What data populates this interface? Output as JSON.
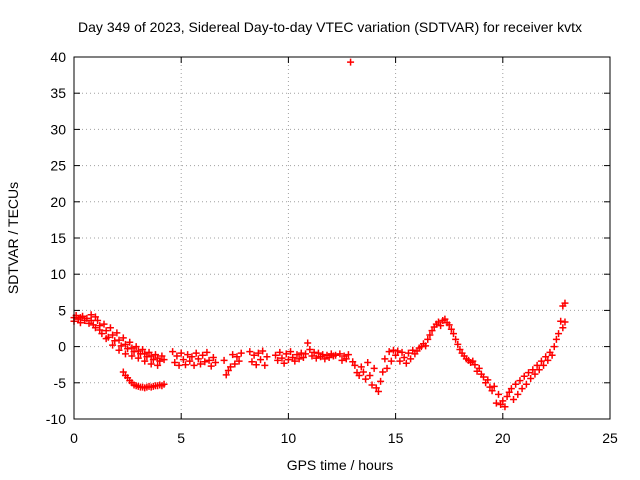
{
  "chart_data": {
    "type": "scatter",
    "title": "Day 349 of 2023, Sidereal Day-to-day VTEC variation (SDTVAR) for receiver kvtx",
    "xlabel": "GPS time / hours",
    "ylabel": "SDTVAR / TECUs",
    "xlim": [
      0,
      25
    ],
    "ylim": [
      -10,
      40
    ],
    "xticks": [
      "0",
      "5",
      "10",
      "15",
      "20",
      "25"
    ],
    "yticks": [
      "-10",
      "-5",
      "0",
      "5",
      "10",
      "15",
      "20",
      "25",
      "30",
      "35",
      "40"
    ],
    "grid": true,
    "marker": "plus",
    "series": [
      {
        "name": "kvtx",
        "color": "#ff0000",
        "points": [
          [
            0.0,
            4.0
          ],
          [
            0.0,
            3.5
          ],
          [
            0.1,
            4.3
          ],
          [
            0.2,
            3.8
          ],
          [
            0.3,
            4.0
          ],
          [
            0.3,
            3.3
          ],
          [
            0.4,
            4.2
          ],
          [
            0.5,
            3.6
          ],
          [
            0.6,
            3.9
          ],
          [
            0.7,
            3.2
          ],
          [
            0.8,
            4.4
          ],
          [
            0.8,
            3.6
          ],
          [
            0.9,
            3.0
          ],
          [
            1.0,
            4.1
          ],
          [
            1.0,
            2.6
          ],
          [
            1.1,
            3.6
          ],
          [
            1.2,
            2.9
          ],
          [
            1.3,
            1.8
          ],
          [
            1.4,
            3.1
          ],
          [
            1.5,
            2.2
          ],
          [
            1.6,
            1.3
          ],
          [
            1.7,
            2.6
          ],
          [
            1.8,
            1.6
          ],
          [
            1.9,
            0.8
          ],
          [
            2.0,
            1.9
          ],
          [
            2.1,
            0.9
          ],
          [
            2.2,
            0.1
          ],
          [
            2.3,
            1.2
          ],
          [
            2.4,
            0.3
          ],
          [
            2.5,
            -0.3
          ],
          [
            2.6,
            0.6
          ],
          [
            2.7,
            -0.2
          ],
          [
            2.8,
            -0.7
          ],
          [
            2.9,
            0.0
          ],
          [
            3.0,
            -0.6
          ],
          [
            3.1,
            -1.0
          ],
          [
            3.2,
            -0.4
          ],
          [
            3.3,
            -1.0
          ],
          [
            3.4,
            -1.4
          ],
          [
            3.5,
            -0.8
          ],
          [
            3.6,
            -1.3
          ],
          [
            3.7,
            -1.8
          ],
          [
            3.8,
            -1.1
          ],
          [
            3.9,
            -1.6
          ],
          [
            4.0,
            -2.0
          ],
          [
            4.1,
            -1.3
          ],
          [
            4.2,
            -1.8
          ],
          [
            1.2,
            2.3
          ],
          [
            1.5,
            1.1
          ],
          [
            1.8,
            0.2
          ],
          [
            2.1,
            -0.5
          ],
          [
            2.4,
            -1.0
          ],
          [
            2.7,
            -1.3
          ],
          [
            3.0,
            -1.6
          ],
          [
            3.3,
            -2.0
          ],
          [
            3.6,
            -2.4
          ],
          [
            3.9,
            -2.6
          ],
          [
            2.3,
            -3.5
          ],
          [
            2.4,
            -4.0
          ],
          [
            2.5,
            -4.3
          ],
          [
            2.6,
            -4.7
          ],
          [
            2.7,
            -5.0
          ],
          [
            2.8,
            -5.3
          ],
          [
            2.9,
            -5.4
          ],
          [
            3.0,
            -5.5
          ],
          [
            3.1,
            -5.6
          ],
          [
            3.2,
            -5.6
          ],
          [
            3.3,
            -5.7
          ],
          [
            3.4,
            -5.6
          ],
          [
            3.5,
            -5.5
          ],
          [
            3.6,
            -5.6
          ],
          [
            3.7,
            -5.5
          ],
          [
            3.8,
            -5.4
          ],
          [
            3.9,
            -5.4
          ],
          [
            4.0,
            -5.3
          ],
          [
            4.1,
            -5.4
          ],
          [
            4.2,
            -5.2
          ],
          [
            4.6,
            -0.7
          ],
          [
            4.7,
            -2.2
          ],
          [
            4.8,
            -1.3
          ],
          [
            4.9,
            -2.6
          ],
          [
            5.0,
            -0.9
          ],
          [
            5.1,
            -1.8
          ],
          [
            5.2,
            -2.5
          ],
          [
            5.3,
            -1.1
          ],
          [
            5.4,
            -2.0
          ],
          [
            5.5,
            -1.4
          ],
          [
            5.6,
            -2.6
          ],
          [
            5.7,
            -0.9
          ],
          [
            5.8,
            -1.7
          ],
          [
            5.9,
            -2.4
          ],
          [
            6.0,
            -1.2
          ],
          [
            6.1,
            -2.1
          ],
          [
            6.2,
            -0.8
          ],
          [
            6.3,
            -1.9
          ],
          [
            6.4,
            -2.7
          ],
          [
            6.5,
            -1.5
          ],
          [
            6.6,
            -2.2
          ],
          [
            7.0,
            -1.9
          ],
          [
            7.1,
            -3.9
          ],
          [
            7.2,
            -3.3
          ],
          [
            7.3,
            -2.8
          ],
          [
            7.4,
            -1.1
          ],
          [
            7.5,
            -2.4
          ],
          [
            7.6,
            -1.4
          ],
          [
            7.7,
            -2.0
          ],
          [
            7.8,
            -0.9
          ],
          [
            8.2,
            -0.7
          ],
          [
            8.3,
            -2.1
          ],
          [
            8.4,
            -1.2
          ],
          [
            8.5,
            -2.5
          ],
          [
            8.6,
            -0.9
          ],
          [
            8.7,
            -1.8
          ],
          [
            8.8,
            -0.6
          ],
          [
            8.9,
            -2.6
          ],
          [
            9.0,
            -1.4
          ],
          [
            9.4,
            -1.2
          ],
          [
            9.5,
            -1.9
          ],
          [
            9.6,
            -0.8
          ],
          [
            9.7,
            -1.6
          ],
          [
            9.8,
            -2.3
          ],
          [
            9.9,
            -1.0
          ],
          [
            10.0,
            -1.8
          ],
          [
            10.1,
            -0.7
          ],
          [
            10.2,
            -1.5
          ],
          [
            10.3,
            -2.0
          ],
          [
            10.4,
            -1.1
          ],
          [
            10.5,
            -1.7
          ],
          [
            10.6,
            -0.9
          ],
          [
            10.7,
            -1.5
          ],
          [
            10.8,
            -1.0
          ],
          [
            10.9,
            0.5
          ],
          [
            11.0,
            -0.4
          ],
          [
            11.1,
            -1.3
          ],
          [
            11.2,
            -0.8
          ],
          [
            11.3,
            -1.6
          ],
          [
            11.4,
            -0.9
          ],
          [
            11.5,
            -1.4
          ],
          [
            11.6,
            -1.1
          ],
          [
            11.7,
            -1.7
          ],
          [
            11.8,
            -1.2
          ],
          [
            11.9,
            -1.5
          ],
          [
            12.0,
            -1.0
          ],
          [
            12.1,
            -1.3
          ],
          [
            12.2,
            -1.2
          ],
          [
            12.4,
            -1.0
          ],
          [
            12.5,
            -1.9
          ],
          [
            12.6,
            -1.3
          ],
          [
            12.7,
            -1.7
          ],
          [
            12.8,
            -1.1
          ],
          [
            12.9,
            39.3
          ],
          [
            13.0,
            -2.1
          ],
          [
            13.1,
            -2.6
          ],
          [
            13.2,
            -3.6
          ],
          [
            13.3,
            -4.0
          ],
          [
            13.4,
            -2.8
          ],
          [
            13.5,
            -3.5
          ],
          [
            13.6,
            -4.5
          ],
          [
            13.7,
            -2.2
          ],
          [
            13.8,
            -4.0
          ],
          [
            13.9,
            -5.3
          ],
          [
            14.0,
            -3.0
          ],
          [
            14.1,
            -5.7
          ],
          [
            14.2,
            -6.2
          ],
          [
            14.3,
            -4.8
          ],
          [
            14.4,
            -3.5
          ],
          [
            14.5,
            -1.7
          ],
          [
            14.6,
            -3.0
          ],
          [
            14.7,
            -0.7
          ],
          [
            14.8,
            -2.0
          ],
          [
            14.9,
            -0.5
          ],
          [
            15.0,
            -1.2
          ],
          [
            15.1,
            -0.6
          ],
          [
            15.2,
            -2.0
          ],
          [
            15.3,
            -0.8
          ],
          [
            15.4,
            -1.5
          ],
          [
            15.5,
            -2.3
          ],
          [
            15.6,
            -0.9
          ],
          [
            15.7,
            -1.7
          ],
          [
            15.8,
            -0.5
          ],
          [
            15.9,
            -1.0
          ],
          [
            16.0,
            -0.6
          ],
          [
            16.1,
            -0.2
          ],
          [
            16.2,
            0.0
          ],
          [
            16.3,
            0.4
          ],
          [
            16.4,
            0.1
          ],
          [
            16.5,
            1.0
          ],
          [
            16.6,
            1.6
          ],
          [
            16.7,
            2.2
          ],
          [
            16.8,
            2.7
          ],
          [
            16.9,
            3.1
          ],
          [
            17.0,
            3.4
          ],
          [
            17.1,
            2.9
          ],
          [
            17.2,
            3.6
          ],
          [
            17.3,
            3.8
          ],
          [
            17.4,
            3.3
          ],
          [
            17.5,
            3.0
          ],
          [
            17.6,
            2.4
          ],
          [
            17.7,
            1.8
          ],
          [
            17.8,
            1.0
          ],
          [
            17.9,
            0.3
          ],
          [
            18.0,
            -0.4
          ],
          [
            18.1,
            -0.9
          ],
          [
            18.2,
            -1.3
          ],
          [
            18.3,
            -1.7
          ],
          [
            18.4,
            -1.9
          ],
          [
            18.5,
            -2.2
          ],
          [
            18.6,
            -2.0
          ],
          [
            18.7,
            -2.5
          ],
          [
            18.8,
            -3.4
          ],
          [
            18.9,
            -3.0
          ],
          [
            19.0,
            -3.8
          ],
          [
            19.1,
            -4.2
          ],
          [
            19.2,
            -5.0
          ],
          [
            19.3,
            -4.6
          ],
          [
            19.4,
            -5.6
          ],
          [
            19.5,
            -6.1
          ],
          [
            19.6,
            -5.5
          ],
          [
            19.7,
            -7.8
          ],
          [
            19.8,
            -6.6
          ],
          [
            19.9,
            -8.0
          ],
          [
            20.0,
            -7.5
          ],
          [
            20.1,
            -8.3
          ],
          [
            20.2,
            -6.9
          ],
          [
            20.3,
            -6.3
          ],
          [
            20.4,
            -5.8
          ],
          [
            20.5,
            -7.3
          ],
          [
            20.6,
            -5.2
          ],
          [
            20.7,
            -6.6
          ],
          [
            20.8,
            -4.7
          ],
          [
            20.9,
            -5.8
          ],
          [
            21.0,
            -4.1
          ],
          [
            21.1,
            -5.2
          ],
          [
            21.2,
            -3.6
          ],
          [
            21.3,
            -4.4
          ],
          [
            21.4,
            -3.2
          ],
          [
            21.5,
            -3.8
          ],
          [
            21.6,
            -2.6
          ],
          [
            21.7,
            -3.2
          ],
          [
            21.8,
            -2.0
          ],
          [
            21.9,
            -2.6
          ],
          [
            22.0,
            -1.4
          ],
          [
            22.1,
            -1.9
          ],
          [
            22.2,
            -0.8
          ],
          [
            22.3,
            -1.2
          ],
          [
            22.4,
            0.0
          ],
          [
            22.5,
            1.0
          ],
          [
            22.6,
            1.8
          ],
          [
            22.7,
            3.5
          ],
          [
            22.8,
            5.6
          ],
          [
            22.9,
            6.0
          ],
          [
            22.8,
            2.6
          ],
          [
            22.9,
            3.4
          ]
        ]
      }
    ]
  }
}
